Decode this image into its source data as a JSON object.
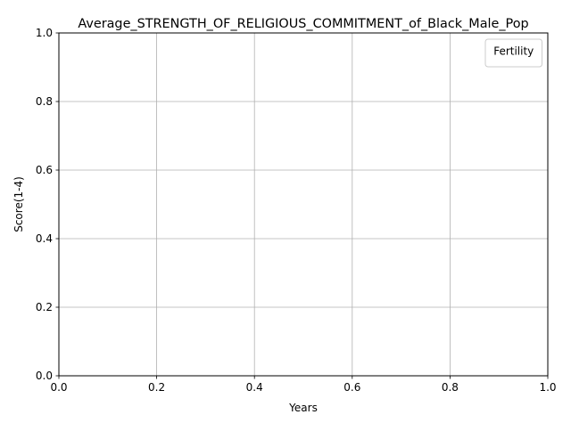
{
  "chart_data": {
    "type": "line",
    "title": "Average_STRENGTH_OF_RELIGIOUS_COMMITMENT_of_Black_Male_Pop",
    "xlabel": "Years",
    "ylabel": "Score(1-4)",
    "xlim": [
      0.0,
      1.0
    ],
    "ylim": [
      0.0,
      1.0
    ],
    "x_ticks": [
      "0.0",
      "0.2",
      "0.4",
      "0.6",
      "0.8",
      "1.0"
    ],
    "y_ticks": [
      "0.0",
      "0.2",
      "0.4",
      "0.6",
      "0.8",
      "1.0"
    ],
    "grid": true,
    "legend": {
      "title": "Fertility",
      "placement": "top-right",
      "entries": []
    },
    "series": []
  }
}
